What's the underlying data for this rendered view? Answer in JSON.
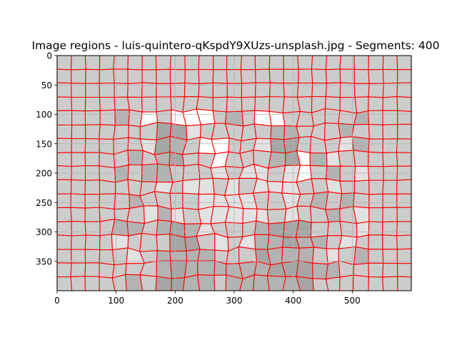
{
  "chart_data": {
    "type": "heatmap",
    "title": "Image regions - luis-quintero-qKspdY9XUzs-unsplash.jpg - Segments: 400",
    "xlabel": "",
    "ylabel": "",
    "image_width": 600,
    "image_height": 400,
    "xlim": [
      0,
      600
    ],
    "ylim": [
      400,
      0
    ],
    "x_ticks": [
      0,
      100,
      200,
      300,
      400,
      500
    ],
    "y_ticks": [
      0,
      50,
      100,
      150,
      200,
      250,
      300,
      350
    ],
    "grid": true,
    "segments": 400,
    "boundary_color": "#ff0000",
    "region_colors": [
      "#cccccc",
      "#e2e2e2",
      "#b3b3b3",
      "#a6a6a6",
      "#ffffff"
    ]
  }
}
